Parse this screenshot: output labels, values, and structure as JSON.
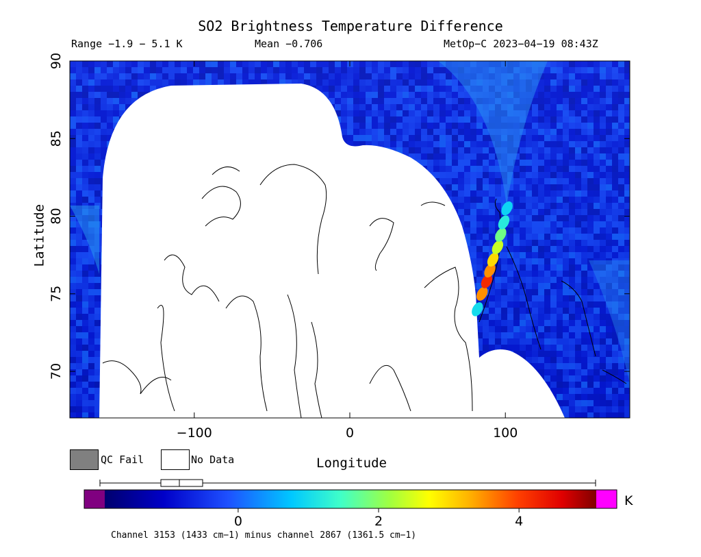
{
  "header": {
    "range_text": "Range −1.9 − 5.1 K",
    "mean_text": "Mean −0.706",
    "satellite_text": "MetOp−C 2023−04−19 08:43Z"
  },
  "legend": {
    "qc_fail_label": "QC Fail",
    "no_data_label": "No Data",
    "qc_fail_color": "#808080",
    "no_data_color": "#ffffff"
  },
  "colorbar": {
    "unit": "K",
    "ticks": [
      0,
      2,
      4
    ],
    "min": -1.9,
    "max": 5.1,
    "under_color": "#800080",
    "over_color": "#ff00ff"
  },
  "footer": {
    "channel_text": "Channel 3153 (1433 cm−1) minus channel 2867 (1361.5 cm−1)"
  },
  "chart_data": {
    "type": "heatmap",
    "title": "SO2 Brightness Temperature Difference",
    "xlabel": "Longitude",
    "ylabel": "Latitude",
    "xlim": [
      -180,
      180
    ],
    "ylim": [
      67,
      90
    ],
    "x_ticks": [
      -100,
      0,
      100
    ],
    "y_ticks": [
      70,
      75,
      80,
      85,
      90
    ],
    "units": "K",
    "range": [
      -1.9,
      5.1
    ],
    "mean": -0.706,
    "plume": {
      "description": "",
      "points": [
        {
          "lon": 82,
          "lat": 74.0,
          "value": 1.0
        },
        {
          "lon": 85,
          "lat": 75.0,
          "value": 3.5
        },
        {
          "lon": 88,
          "lat": 75.8,
          "value": 4.2
        },
        {
          "lon": 90,
          "lat": 76.5,
          "value": 3.5
        },
        {
          "lon": 92,
          "lat": 77.2,
          "value": 3.0
        },
        {
          "lon": 95,
          "lat": 78.0,
          "value": 2.4
        },
        {
          "lon": 97,
          "lat": 78.8,
          "value": 1.8
        },
        {
          "lon": 99,
          "lat": 79.6,
          "value": 1.2
        },
        {
          "lon": 101,
          "lat": 80.5,
          "value": 0.9
        }
      ]
    },
    "colorbar_ticks": [
      0,
      2,
      4
    ],
    "legend_items": [
      "QC Fail",
      "No Data"
    ]
  }
}
